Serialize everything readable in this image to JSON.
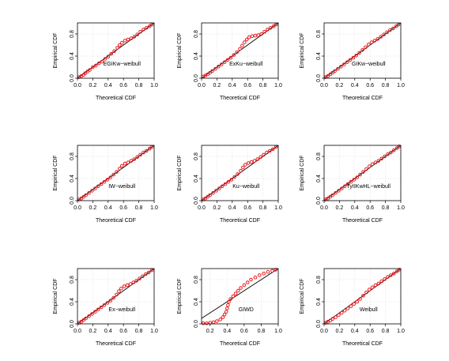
{
  "figure": {
    "xlabel": "Theoretical CDF",
    "ylabel": "Empirical CDF"
  },
  "colors": {
    "points": "#e8191e",
    "reference_line": "#000000",
    "grid": "#cccccc"
  },
  "chart_data": [
    {
      "type": "scatter",
      "label": "EGIKw−weibull",
      "xticks": [
        "0.0",
        "0.2",
        "0.4",
        "0.6",
        "0.8",
        "1.0"
      ],
      "yticks": [
        "0.0",
        "0.4",
        "0.8"
      ],
      "xlim": [
        0,
        1
      ],
      "ylim": [
        0,
        1
      ],
      "grid": true,
      "reference_line": [
        [
          0,
          0
        ],
        [
          1,
          1
        ]
      ],
      "points": [
        [
          0.02,
          0.02
        ],
        [
          0.05,
          0.04
        ],
        [
          0.08,
          0.06
        ],
        [
          0.1,
          0.09
        ],
        [
          0.13,
          0.12
        ],
        [
          0.16,
          0.15
        ],
        [
          0.2,
          0.2
        ],
        [
          0.24,
          0.23
        ],
        [
          0.28,
          0.27
        ],
        [
          0.32,
          0.3
        ],
        [
          0.36,
          0.35
        ],
        [
          0.4,
          0.39
        ],
        [
          0.44,
          0.44
        ],
        [
          0.48,
          0.49
        ],
        [
          0.52,
          0.55
        ],
        [
          0.55,
          0.6
        ],
        [
          0.58,
          0.64
        ],
        [
          0.62,
          0.68
        ],
        [
          0.66,
          0.7
        ],
        [
          0.7,
          0.72
        ],
        [
          0.74,
          0.75
        ],
        [
          0.78,
          0.79
        ],
        [
          0.82,
          0.84
        ],
        [
          0.86,
          0.88
        ],
        [
          0.9,
          0.91
        ],
        [
          0.94,
          0.94
        ],
        [
          0.97,
          0.97
        ]
      ]
    },
    {
      "type": "scatter",
      "label": "ExKu−weibull",
      "xticks": [
        "0.0",
        "0.2",
        "0.4",
        "0.6",
        "0.8",
        "1.0"
      ],
      "yticks": [
        "0.0",
        "0.4",
        "0.8"
      ],
      "xlim": [
        0,
        1
      ],
      "ylim": [
        0,
        1
      ],
      "grid": true,
      "reference_line": [
        [
          0,
          0
        ],
        [
          1,
          1
        ]
      ],
      "points": [
        [
          0.02,
          0.03
        ],
        [
          0.05,
          0.05
        ],
        [
          0.08,
          0.07
        ],
        [
          0.11,
          0.1
        ],
        [
          0.14,
          0.13
        ],
        [
          0.18,
          0.17
        ],
        [
          0.22,
          0.21
        ],
        [
          0.26,
          0.25
        ],
        [
          0.3,
          0.29
        ],
        [
          0.34,
          0.33
        ],
        [
          0.38,
          0.37
        ],
        [
          0.42,
          0.42
        ],
        [
          0.46,
          0.47
        ],
        [
          0.5,
          0.53
        ],
        [
          0.53,
          0.59
        ],
        [
          0.56,
          0.65
        ],
        [
          0.59,
          0.7
        ],
        [
          0.62,
          0.74
        ],
        [
          0.66,
          0.76
        ],
        [
          0.7,
          0.77
        ],
        [
          0.74,
          0.78
        ],
        [
          0.78,
          0.8
        ],
        [
          0.82,
          0.84
        ],
        [
          0.86,
          0.88
        ],
        [
          0.9,
          0.91
        ],
        [
          0.94,
          0.94
        ],
        [
          0.97,
          0.97
        ]
      ]
    },
    {
      "type": "scatter",
      "label": "GIKw−weibull",
      "xticks": [
        "0.0",
        "0.2",
        "0.4",
        "0.6",
        "0.8",
        "1.0"
      ],
      "yticks": [
        "0.0",
        "0.4",
        "0.8"
      ],
      "xlim": [
        0,
        1
      ],
      "ylim": [
        0,
        1
      ],
      "grid": true,
      "reference_line": [
        [
          0,
          0
        ],
        [
          1,
          1
        ]
      ],
      "points": [
        [
          0.02,
          0.02
        ],
        [
          0.05,
          0.04
        ],
        [
          0.08,
          0.07
        ],
        [
          0.11,
          0.1
        ],
        [
          0.14,
          0.13
        ],
        [
          0.18,
          0.17
        ],
        [
          0.22,
          0.21
        ],
        [
          0.26,
          0.25
        ],
        [
          0.3,
          0.29
        ],
        [
          0.34,
          0.33
        ],
        [
          0.38,
          0.37
        ],
        [
          0.42,
          0.41
        ],
        [
          0.46,
          0.46
        ],
        [
          0.5,
          0.51
        ],
        [
          0.54,
          0.56
        ],
        [
          0.58,
          0.61
        ],
        [
          0.62,
          0.65
        ],
        [
          0.66,
          0.68
        ],
        [
          0.7,
          0.71
        ],
        [
          0.74,
          0.75
        ],
        [
          0.78,
          0.79
        ],
        [
          0.82,
          0.83
        ],
        [
          0.86,
          0.87
        ],
        [
          0.9,
          0.9
        ],
        [
          0.94,
          0.94
        ],
        [
          0.97,
          0.97
        ]
      ]
    },
    {
      "type": "scatter",
      "label": "IW−weibull",
      "xticks": [
        "0.0",
        "0.2",
        "0.4",
        "0.6",
        "0.8",
        "1.0"
      ],
      "yticks": [
        "0.0",
        "0.4",
        "0.8"
      ],
      "xlim": [
        0,
        1
      ],
      "ylim": [
        0,
        1
      ],
      "grid": true,
      "reference_line": [
        [
          0,
          0
        ],
        [
          1,
          1
        ]
      ],
      "points": [
        [
          0.02,
          0.02
        ],
        [
          0.05,
          0.04
        ],
        [
          0.08,
          0.07
        ],
        [
          0.11,
          0.1
        ],
        [
          0.15,
          0.14
        ],
        [
          0.19,
          0.18
        ],
        [
          0.23,
          0.22
        ],
        [
          0.27,
          0.26
        ],
        [
          0.31,
          0.3
        ],
        [
          0.35,
          0.34
        ],
        [
          0.39,
          0.38
        ],
        [
          0.43,
          0.42
        ],
        [
          0.47,
          0.47
        ],
        [
          0.51,
          0.52
        ],
        [
          0.55,
          0.58
        ],
        [
          0.58,
          0.63
        ],
        [
          0.62,
          0.67
        ],
        [
          0.66,
          0.69
        ],
        [
          0.7,
          0.72
        ],
        [
          0.74,
          0.75
        ],
        [
          0.78,
          0.79
        ],
        [
          0.82,
          0.83
        ],
        [
          0.86,
          0.87
        ],
        [
          0.9,
          0.9
        ],
        [
          0.94,
          0.94
        ],
        [
          0.97,
          0.97
        ]
      ]
    },
    {
      "type": "scatter",
      "label": "Ku−weibull",
      "xticks": [
        "0.0",
        "0.2",
        "0.4",
        "0.6",
        "0.8",
        "1.0"
      ],
      "yticks": [
        "0.0",
        "0.4",
        "0.8"
      ],
      "xlim": [
        0,
        1
      ],
      "ylim": [
        0,
        1
      ],
      "grid": true,
      "reference_line": [
        [
          0,
          0
        ],
        [
          1,
          1
        ]
      ],
      "points": [
        [
          0.02,
          0.02
        ],
        [
          0.05,
          0.04
        ],
        [
          0.08,
          0.07
        ],
        [
          0.11,
          0.1
        ],
        [
          0.15,
          0.14
        ],
        [
          0.19,
          0.18
        ],
        [
          0.23,
          0.22
        ],
        [
          0.27,
          0.26
        ],
        [
          0.31,
          0.3
        ],
        [
          0.35,
          0.34
        ],
        [
          0.39,
          0.38
        ],
        [
          0.43,
          0.43
        ],
        [
          0.47,
          0.48
        ],
        [
          0.51,
          0.54
        ],
        [
          0.54,
          0.6
        ],
        [
          0.57,
          0.65
        ],
        [
          0.61,
          0.68
        ],
        [
          0.65,
          0.7
        ],
        [
          0.69,
          0.72
        ],
        [
          0.73,
          0.75
        ],
        [
          0.77,
          0.79
        ],
        [
          0.81,
          0.83
        ],
        [
          0.85,
          0.87
        ],
        [
          0.89,
          0.9
        ],
        [
          0.93,
          0.93
        ],
        [
          0.97,
          0.97
        ]
      ]
    },
    {
      "type": "scatter",
      "label": "TyIIKwHL−weibull",
      "xticks": [
        "0.0",
        "0.2",
        "0.4",
        "0.6",
        "0.8",
        "1.0"
      ],
      "yticks": [
        "0.0",
        "0.4",
        "0.8"
      ],
      "xlim": [
        0,
        1
      ],
      "ylim": [
        0,
        1
      ],
      "grid": true,
      "reference_line": [
        [
          0,
          0
        ],
        [
          1,
          1
        ]
      ],
      "points": [
        [
          0.02,
          0.02
        ],
        [
          0.05,
          0.04
        ],
        [
          0.08,
          0.07
        ],
        [
          0.11,
          0.1
        ],
        [
          0.15,
          0.14
        ],
        [
          0.19,
          0.18
        ],
        [
          0.23,
          0.22
        ],
        [
          0.27,
          0.26
        ],
        [
          0.31,
          0.3
        ],
        [
          0.35,
          0.34
        ],
        [
          0.39,
          0.38
        ],
        [
          0.43,
          0.42
        ],
        [
          0.47,
          0.47
        ],
        [
          0.51,
          0.52
        ],
        [
          0.55,
          0.57
        ],
        [
          0.59,
          0.62
        ],
        [
          0.63,
          0.66
        ],
        [
          0.67,
          0.69
        ],
        [
          0.71,
          0.72
        ],
        [
          0.75,
          0.76
        ],
        [
          0.79,
          0.8
        ],
        [
          0.83,
          0.84
        ],
        [
          0.87,
          0.87
        ],
        [
          0.91,
          0.91
        ],
        [
          0.95,
          0.95
        ],
        [
          0.98,
          0.98
        ]
      ]
    },
    {
      "type": "scatter",
      "label": "Ex−weibull",
      "xticks": [
        "0.0",
        "0.2",
        "0.4",
        "0.6",
        "0.8",
        "1.0"
      ],
      "yticks": [
        "0.0",
        "0.4",
        "0.8"
      ],
      "xlim": [
        0,
        1
      ],
      "ylim": [
        0,
        1
      ],
      "grid": true,
      "reference_line": [
        [
          0,
          0
        ],
        [
          1,
          1
        ]
      ],
      "points": [
        [
          0.02,
          0.02
        ],
        [
          0.05,
          0.04
        ],
        [
          0.08,
          0.07
        ],
        [
          0.11,
          0.1
        ],
        [
          0.15,
          0.14
        ],
        [
          0.19,
          0.18
        ],
        [
          0.23,
          0.22
        ],
        [
          0.27,
          0.26
        ],
        [
          0.31,
          0.3
        ],
        [
          0.35,
          0.34
        ],
        [
          0.39,
          0.38
        ],
        [
          0.43,
          0.42
        ],
        [
          0.47,
          0.47
        ],
        [
          0.51,
          0.53
        ],
        [
          0.54,
          0.59
        ],
        [
          0.57,
          0.64
        ],
        [
          0.61,
          0.68
        ],
        [
          0.65,
          0.7
        ],
        [
          0.69,
          0.72
        ],
        [
          0.73,
          0.75
        ],
        [
          0.77,
          0.78
        ],
        [
          0.81,
          0.82
        ],
        [
          0.85,
          0.86
        ],
        [
          0.89,
          0.9
        ],
        [
          0.93,
          0.93
        ],
        [
          0.97,
          0.97
        ]
      ]
    },
    {
      "type": "scatter",
      "label": "GIWD",
      "xticks": [
        "0.2",
        "0.4",
        "0.6",
        "0.8",
        "1.0"
      ],
      "yticks": [
        "0.0",
        "0.4",
        "0.8"
      ],
      "xlim": [
        0.1,
        1
      ],
      "ylim": [
        0,
        1
      ],
      "grid": true,
      "reference_line": [
        [
          0.1,
          0.1
        ],
        [
          1,
          1
        ]
      ],
      "points": [
        [
          0.12,
          0.01
        ],
        [
          0.16,
          0.01
        ],
        [
          0.2,
          0.02
        ],
        [
          0.24,
          0.03
        ],
        [
          0.28,
          0.05
        ],
        [
          0.32,
          0.08
        ],
        [
          0.35,
          0.12
        ],
        [
          0.37,
          0.17
        ],
        [
          0.39,
          0.22
        ],
        [
          0.4,
          0.28
        ],
        [
          0.41,
          0.34
        ],
        [
          0.42,
          0.4
        ],
        [
          0.44,
          0.45
        ],
        [
          0.47,
          0.5
        ],
        [
          0.5,
          0.55
        ],
        [
          0.53,
          0.6
        ],
        [
          0.56,
          0.65
        ],
        [
          0.6,
          0.7
        ],
        [
          0.64,
          0.75
        ],
        [
          0.68,
          0.8
        ],
        [
          0.73,
          0.84
        ],
        [
          0.78,
          0.88
        ],
        [
          0.83,
          0.91
        ],
        [
          0.88,
          0.94
        ],
        [
          0.93,
          0.96
        ],
        [
          0.97,
          0.98
        ]
      ]
    },
    {
      "type": "scatter",
      "label": "Weibull",
      "xticks": [
        "0.0",
        "0.2",
        "0.4",
        "0.6",
        "0.8",
        "1.0"
      ],
      "yticks": [
        "0.0",
        "0.4",
        "0.8"
      ],
      "xlim": [
        0,
        1
      ],
      "ylim": [
        0,
        1
      ],
      "grid": true,
      "reference_line": [
        [
          0,
          0
        ],
        [
          1,
          1
        ]
      ],
      "points": [
        [
          0.02,
          0.02
        ],
        [
          0.05,
          0.04
        ],
        [
          0.08,
          0.06
        ],
        [
          0.11,
          0.09
        ],
        [
          0.15,
          0.12
        ],
        [
          0.19,
          0.16
        ],
        [
          0.23,
          0.2
        ],
        [
          0.27,
          0.24
        ],
        [
          0.31,
          0.28
        ],
        [
          0.35,
          0.32
        ],
        [
          0.39,
          0.36
        ],
        [
          0.43,
          0.4
        ],
        [
          0.47,
          0.45
        ],
        [
          0.51,
          0.51
        ],
        [
          0.55,
          0.57
        ],
        [
          0.59,
          0.62
        ],
        [
          0.63,
          0.66
        ],
        [
          0.67,
          0.7
        ],
        [
          0.71,
          0.73
        ],
        [
          0.75,
          0.77
        ],
        [
          0.79,
          0.81
        ],
        [
          0.83,
          0.85
        ],
        [
          0.87,
          0.88
        ],
        [
          0.91,
          0.91
        ],
        [
          0.95,
          0.95
        ],
        [
          0.98,
          0.98
        ]
      ]
    }
  ]
}
